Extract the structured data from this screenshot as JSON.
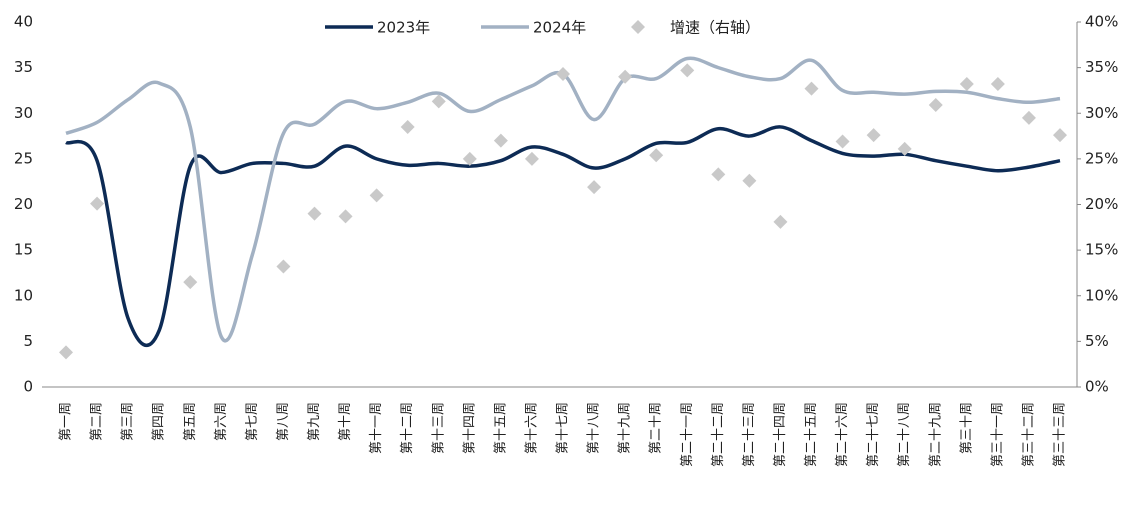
{
  "chart_data": {
    "type": "line",
    "categories": [
      "第一周",
      "第二周",
      "第三周",
      "第四周",
      "第五周",
      "第六周",
      "第七周",
      "第八周",
      "第九周",
      "第十周",
      "第十一周",
      "第十二周",
      "第十三周",
      "第十四周",
      "第十五周",
      "第十六周",
      "第十七周",
      "第十八周",
      "第十九周",
      "第二十周",
      "第二十一周",
      "第二十二周",
      "第二十三周",
      "第二十四周",
      "第二十五周",
      "第二十六周",
      "第二十七周",
      "第二十八周",
      "第二十九周",
      "第三十周",
      "第三十一周",
      "第三十二周",
      "第三十三周"
    ],
    "series": [
      {
        "name": "2023年",
        "color": "#0d2b55",
        "style": "line",
        "values": [
          26.8,
          24.8,
          7.5,
          6.2,
          24.2,
          23.5,
          24.5,
          24.5,
          24.2,
          26.4,
          25.0,
          24.3,
          24.5,
          24.2,
          24.8,
          26.3,
          25.5,
          24.0,
          25.0,
          26.7,
          26.8,
          28.3,
          27.5,
          28.5,
          27.0,
          25.6,
          25.3,
          25.5,
          24.8,
          24.2,
          23.7,
          24.1,
          24.8
        ]
      },
      {
        "name": "2024年",
        "color": "#a2b1c3",
        "style": "line",
        "values": [
          27.8,
          29.0,
          31.5,
          33.3,
          28.5,
          5.5,
          14.5,
          27.8,
          28.8,
          31.3,
          30.5,
          31.2,
          32.2,
          30.2,
          31.5,
          33.0,
          34.3,
          29.3,
          33.8,
          33.8,
          36.0,
          35.0,
          34.0,
          33.8,
          35.8,
          32.5,
          32.3,
          32.1,
          32.4,
          32.3,
          31.6,
          31.2,
          31.6
        ]
      },
      {
        "name": "增速（右轴）",
        "color": "#c9c9c9",
        "style": "scatter",
        "axis": "y2",
        "values": [
          3.8,
          20.1,
          null,
          null,
          11.5,
          null,
          null,
          13.2,
          19.0,
          18.7,
          21.0,
          28.5,
          31.3,
          25.0,
          27.0,
          25.0,
          34.3,
          21.9,
          34.0,
          25.4,
          34.7,
          23.3,
          22.6,
          18.1,
          32.7,
          26.9,
          27.6,
          26.1,
          30.9,
          33.2,
          33.2,
          29.5,
          27.6
        ]
      }
    ],
    "ylim": [
      0,
      40
    ],
    "yticks": [
      0,
      5,
      10,
      15,
      20,
      25,
      30,
      35,
      40
    ],
    "y2lim": [
      0,
      40
    ],
    "y2ticks": [
      {
        "value": 0,
        "label": "0%"
      },
      {
        "value": 5,
        "label": "5%"
      },
      {
        "value": 10,
        "label": "10%"
      },
      {
        "value": 15,
        "label": "15%"
      },
      {
        "value": 20,
        "label": "20%"
      },
      {
        "value": 25,
        "label": "25%"
      },
      {
        "value": 30,
        "label": "30%"
      },
      {
        "value": 35,
        "label": "35%"
      },
      {
        "value": 40,
        "label": "40%"
      }
    ],
    "grid": false,
    "legend": "top"
  }
}
